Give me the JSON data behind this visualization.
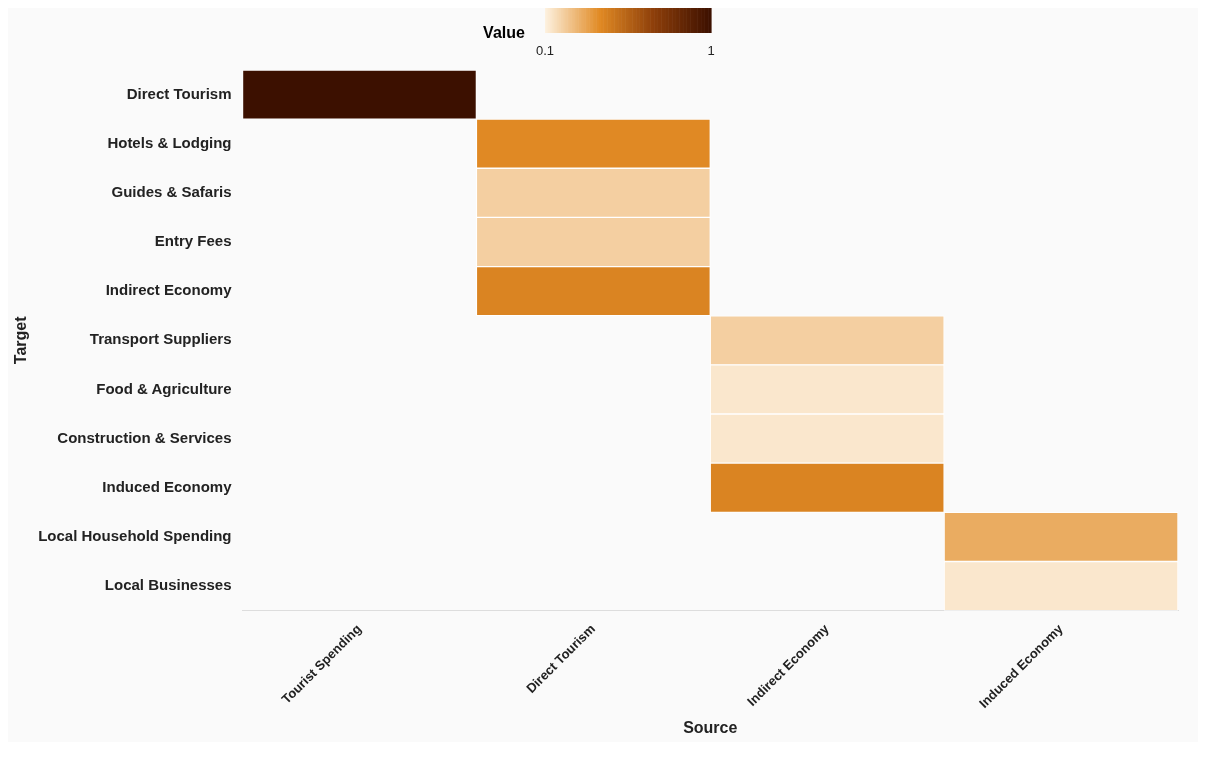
{
  "chart_data": {
    "type": "heatmap",
    "xlabel": "Source",
    "ylabel": "Target",
    "clabel": "Value",
    "clim": [
      0.1,
      1
    ],
    "cticks": [
      0.1,
      1
    ],
    "categories": [
      "Tourist Spending",
      "Direct Tourism",
      "Indirect Economy",
      "Induced Economy"
    ],
    "y_categories": [
      "Direct Tourism",
      "Hotels & Lodging",
      "Guides & Safaris",
      "Entry Fees",
      "Indirect Economy",
      "Transport Suppliers",
      "Food & Agriculture",
      "Construction & Services",
      "Induced Economy",
      "Local Household Spending",
      "Local Businesses"
    ],
    "cells": [
      [
        1,
        null,
        null,
        null
      ],
      [
        null,
        0.4,
        null,
        null
      ],
      [
        null,
        0.2,
        null,
        null
      ],
      [
        null,
        0.2,
        null,
        null
      ],
      [
        null,
        0.42,
        null,
        null
      ],
      [
        null,
        null,
        0.2,
        null
      ],
      [
        null,
        null,
        0.13,
        null
      ],
      [
        null,
        null,
        0.13,
        null
      ],
      [
        null,
        null,
        0.42,
        null
      ],
      [
        null,
        null,
        null,
        0.3
      ],
      [
        null,
        null,
        null,
        0.13
      ]
    ]
  }
}
